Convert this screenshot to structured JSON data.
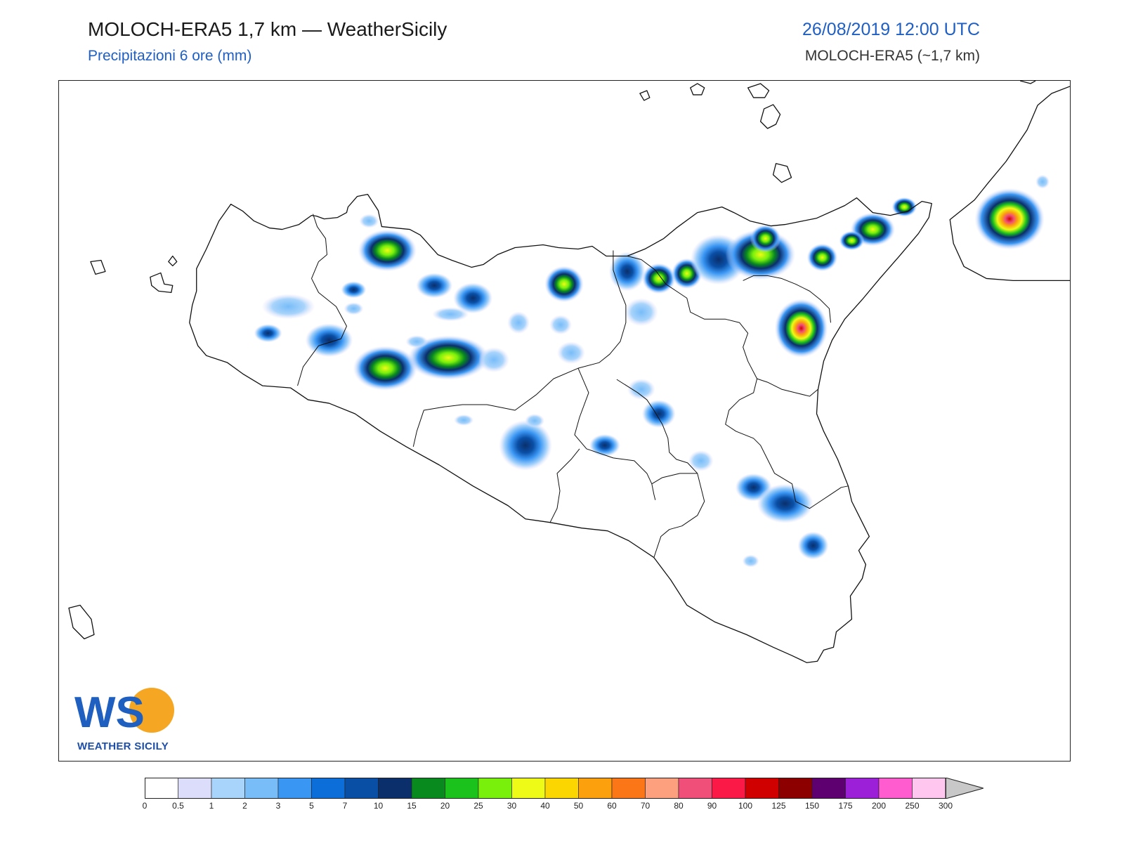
{
  "header": {
    "title": "MOLOCH-ERA5 1,7 km — WeatherSicily",
    "subtitle": "Precipitazioni 6 ore (mm)",
    "datetime": "26/08/2019 12:00 UTC",
    "model": "MOLOCH-ERA5 (~1,7 km)"
  },
  "logo": {
    "letters": "WS",
    "name": "WEATHER SICILY"
  },
  "colorbar": {
    "labels": [
      "0",
      "0.5",
      "1",
      "2",
      "3",
      "5",
      "7",
      "10",
      "15",
      "20",
      "25",
      "30",
      "40",
      "50",
      "60",
      "70",
      "80",
      "90",
      "100",
      "125",
      "150",
      "175",
      "200",
      "250",
      "300"
    ],
    "colors": [
      "#ffffff",
      "#dcdcfb",
      "#a8d4fb",
      "#78bcf8",
      "#3a96f3",
      "#0c6fd9",
      "#0a4fa6",
      "#0a2f6b",
      "#098a1f",
      "#1bc21b",
      "#78f00c",
      "#eefb17",
      "#fcd600",
      "#fca00d",
      "#fb7616",
      "#fca07e",
      "#ef4f78",
      "#fb1a47",
      "#d10000",
      "#8c0000",
      "#5f0070",
      "#9c20d8",
      "#ff5ccf",
      "#ffc7ef"
    ],
    "extend_color": "#c8c8c8"
  }
}
